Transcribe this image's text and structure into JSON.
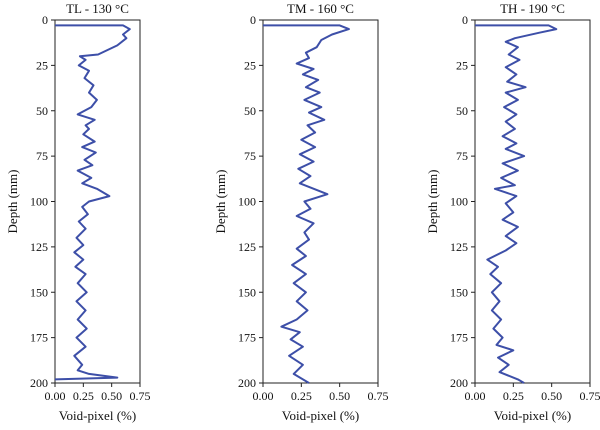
{
  "chart_data": [
    {
      "type": "line",
      "title": "TL - 130 °C",
      "xlabel": "Void-pixel (%)",
      "ylabel": "Depth (mm)",
      "xlim": [
        0,
        0.75
      ],
      "ylim": [
        0,
        200
      ],
      "y_inverted": true,
      "xticks": [
        "0.00",
        "0.25",
        "0.50",
        "0.75"
      ],
      "yticks": [
        "0",
        "25",
        "50",
        "75",
        "100",
        "125",
        "150",
        "175",
        "200"
      ],
      "series": [
        {
          "color": "#3d4fa8",
          "points": [
            [
              0.0,
              3
            ],
            [
              0.6,
              3
            ],
            [
              0.66,
              5
            ],
            [
              0.6,
              8
            ],
            [
              0.63,
              10
            ],
            [
              0.55,
              14
            ],
            [
              0.38,
              19
            ],
            [
              0.22,
              20
            ],
            [
              0.27,
              22
            ],
            [
              0.21,
              25
            ],
            [
              0.3,
              28
            ],
            [
              0.26,
              32
            ],
            [
              0.34,
              36
            ],
            [
              0.3,
              40
            ],
            [
              0.37,
              44
            ],
            [
              0.32,
              48
            ],
            [
              0.2,
              52
            ],
            [
              0.35,
              55
            ],
            [
              0.27,
              58
            ],
            [
              0.3,
              60
            ],
            [
              0.25,
              63
            ],
            [
              0.35,
              67
            ],
            [
              0.24,
              70
            ],
            [
              0.36,
              73
            ],
            [
              0.26,
              77
            ],
            [
              0.33,
              80
            ],
            [
              0.2,
              83
            ],
            [
              0.32,
              87
            ],
            [
              0.24,
              90
            ],
            [
              0.37,
              93
            ],
            [
              0.48,
              97
            ],
            [
              0.3,
              100
            ],
            [
              0.24,
              103
            ],
            [
              0.29,
              107
            ],
            [
              0.21,
              111
            ],
            [
              0.27,
              115
            ],
            [
              0.19,
              120
            ],
            [
              0.25,
              124
            ],
            [
              0.17,
              128
            ],
            [
              0.25,
              132
            ],
            [
              0.18,
              136
            ],
            [
              0.27,
              140
            ],
            [
              0.2,
              145
            ],
            [
              0.28,
              150
            ],
            [
              0.19,
              155
            ],
            [
              0.27,
              160
            ],
            [
              0.2,
              165
            ],
            [
              0.28,
              170
            ],
            [
              0.19,
              175
            ],
            [
              0.27,
              180
            ],
            [
              0.17,
              185
            ],
            [
              0.24,
              190
            ],
            [
              0.2,
              193
            ],
            [
              0.3,
              195
            ],
            [
              0.55,
              197
            ],
            [
              0.0,
              198
            ]
          ]
        }
      ]
    },
    {
      "type": "line",
      "title": "TM - 160 °C",
      "xlabel": "Void-pixel (%)",
      "ylabel": "Depth (mm)",
      "xlim": [
        0,
        0.75
      ],
      "ylim": [
        0,
        200
      ],
      "y_inverted": true,
      "xticks": [
        "0.00",
        "0.25",
        "0.50",
        "0.75"
      ],
      "yticks": [
        "0",
        "25",
        "50",
        "75",
        "100",
        "125",
        "150",
        "175",
        "200"
      ],
      "series": [
        {
          "color": "#3d4fa8",
          "points": [
            [
              0.0,
              3
            ],
            [
              0.5,
              3
            ],
            [
              0.56,
              5
            ],
            [
              0.45,
              8
            ],
            [
              0.38,
              11
            ],
            [
              0.35,
              15
            ],
            [
              0.28,
              18
            ],
            [
              0.3,
              21
            ],
            [
              0.22,
              24
            ],
            [
              0.33,
              27
            ],
            [
              0.26,
              30
            ],
            [
              0.36,
              33
            ],
            [
              0.28,
              37
            ],
            [
              0.37,
              40
            ],
            [
              0.27,
              44
            ],
            [
              0.38,
              48
            ],
            [
              0.3,
              51
            ],
            [
              0.4,
              55
            ],
            [
              0.29,
              58
            ],
            [
              0.34,
              62
            ],
            [
              0.25,
              66
            ],
            [
              0.34,
              70
            ],
            [
              0.24,
              74
            ],
            [
              0.33,
              78
            ],
            [
              0.23,
              82
            ],
            [
              0.31,
              86
            ],
            [
              0.24,
              90
            ],
            [
              0.42,
              96
            ],
            [
              0.27,
              100
            ],
            [
              0.31,
              104
            ],
            [
              0.22,
              108
            ],
            [
              0.33,
              112
            ],
            [
              0.27,
              117
            ],
            [
              0.3,
              121
            ],
            [
              0.22,
              126
            ],
            [
              0.28,
              130
            ],
            [
              0.19,
              135
            ],
            [
              0.28,
              140
            ],
            [
              0.2,
              145
            ],
            [
              0.28,
              150
            ],
            [
              0.22,
              155
            ],
            [
              0.29,
              160
            ],
            [
              0.22,
              165
            ],
            [
              0.12,
              169
            ],
            [
              0.24,
              172
            ],
            [
              0.18,
              176
            ],
            [
              0.26,
              180
            ],
            [
              0.17,
              185
            ],
            [
              0.26,
              190
            ],
            [
              0.2,
              195
            ],
            [
              0.3,
              200
            ]
          ]
        }
      ]
    },
    {
      "type": "line",
      "title": "TH - 190 °C",
      "xlabel": "Void-pixel (%)",
      "ylabel": "Depth (mm)",
      "xlim": [
        0,
        0.75
      ],
      "ylim": [
        0,
        200
      ],
      "y_inverted": true,
      "xticks": [
        "0.00",
        "0.25",
        "0.50",
        "0.75"
      ],
      "yticks": [
        "0",
        "25",
        "50",
        "75",
        "100",
        "125",
        "150",
        "175",
        "200"
      ],
      "series": [
        {
          "color": "#3d4fa8",
          "points": [
            [
              0.0,
              3
            ],
            [
              0.48,
              3
            ],
            [
              0.53,
              5
            ],
            [
              0.42,
              7
            ],
            [
              0.26,
              10
            ],
            [
              0.2,
              12
            ],
            [
              0.28,
              15
            ],
            [
              0.22,
              19
            ],
            [
              0.29,
              22
            ],
            [
              0.2,
              26
            ],
            [
              0.27,
              30
            ],
            [
              0.21,
              34
            ],
            [
              0.33,
              37
            ],
            [
              0.2,
              40
            ],
            [
              0.28,
              44
            ],
            [
              0.19,
              48
            ],
            [
              0.27,
              52
            ],
            [
              0.2,
              56
            ],
            [
              0.26,
              60
            ],
            [
              0.18,
              64
            ],
            [
              0.27,
              68
            ],
            [
              0.2,
              71
            ],
            [
              0.32,
              75
            ],
            [
              0.18,
              79
            ],
            [
              0.28,
              83
            ],
            [
              0.17,
              87
            ],
            [
              0.26,
              91
            ],
            [
              0.13,
              93
            ],
            [
              0.27,
              97
            ],
            [
              0.2,
              101
            ],
            [
              0.25,
              106
            ],
            [
              0.18,
              110
            ],
            [
              0.28,
              114
            ],
            [
              0.2,
              119
            ],
            [
              0.27,
              123
            ],
            [
              0.2,
              127
            ],
            [
              0.08,
              132
            ],
            [
              0.15,
              136
            ],
            [
              0.1,
              140
            ],
            [
              0.17,
              145
            ],
            [
              0.11,
              150
            ],
            [
              0.16,
              155
            ],
            [
              0.11,
              160
            ],
            [
              0.17,
              165
            ],
            [
              0.12,
              170
            ],
            [
              0.18,
              175
            ],
            [
              0.14,
              179
            ],
            [
              0.25,
              182
            ],
            [
              0.15,
              186
            ],
            [
              0.22,
              190
            ],
            [
              0.16,
              194
            ],
            [
              0.28,
              198
            ],
            [
              0.32,
              200
            ]
          ]
        }
      ]
    }
  ]
}
